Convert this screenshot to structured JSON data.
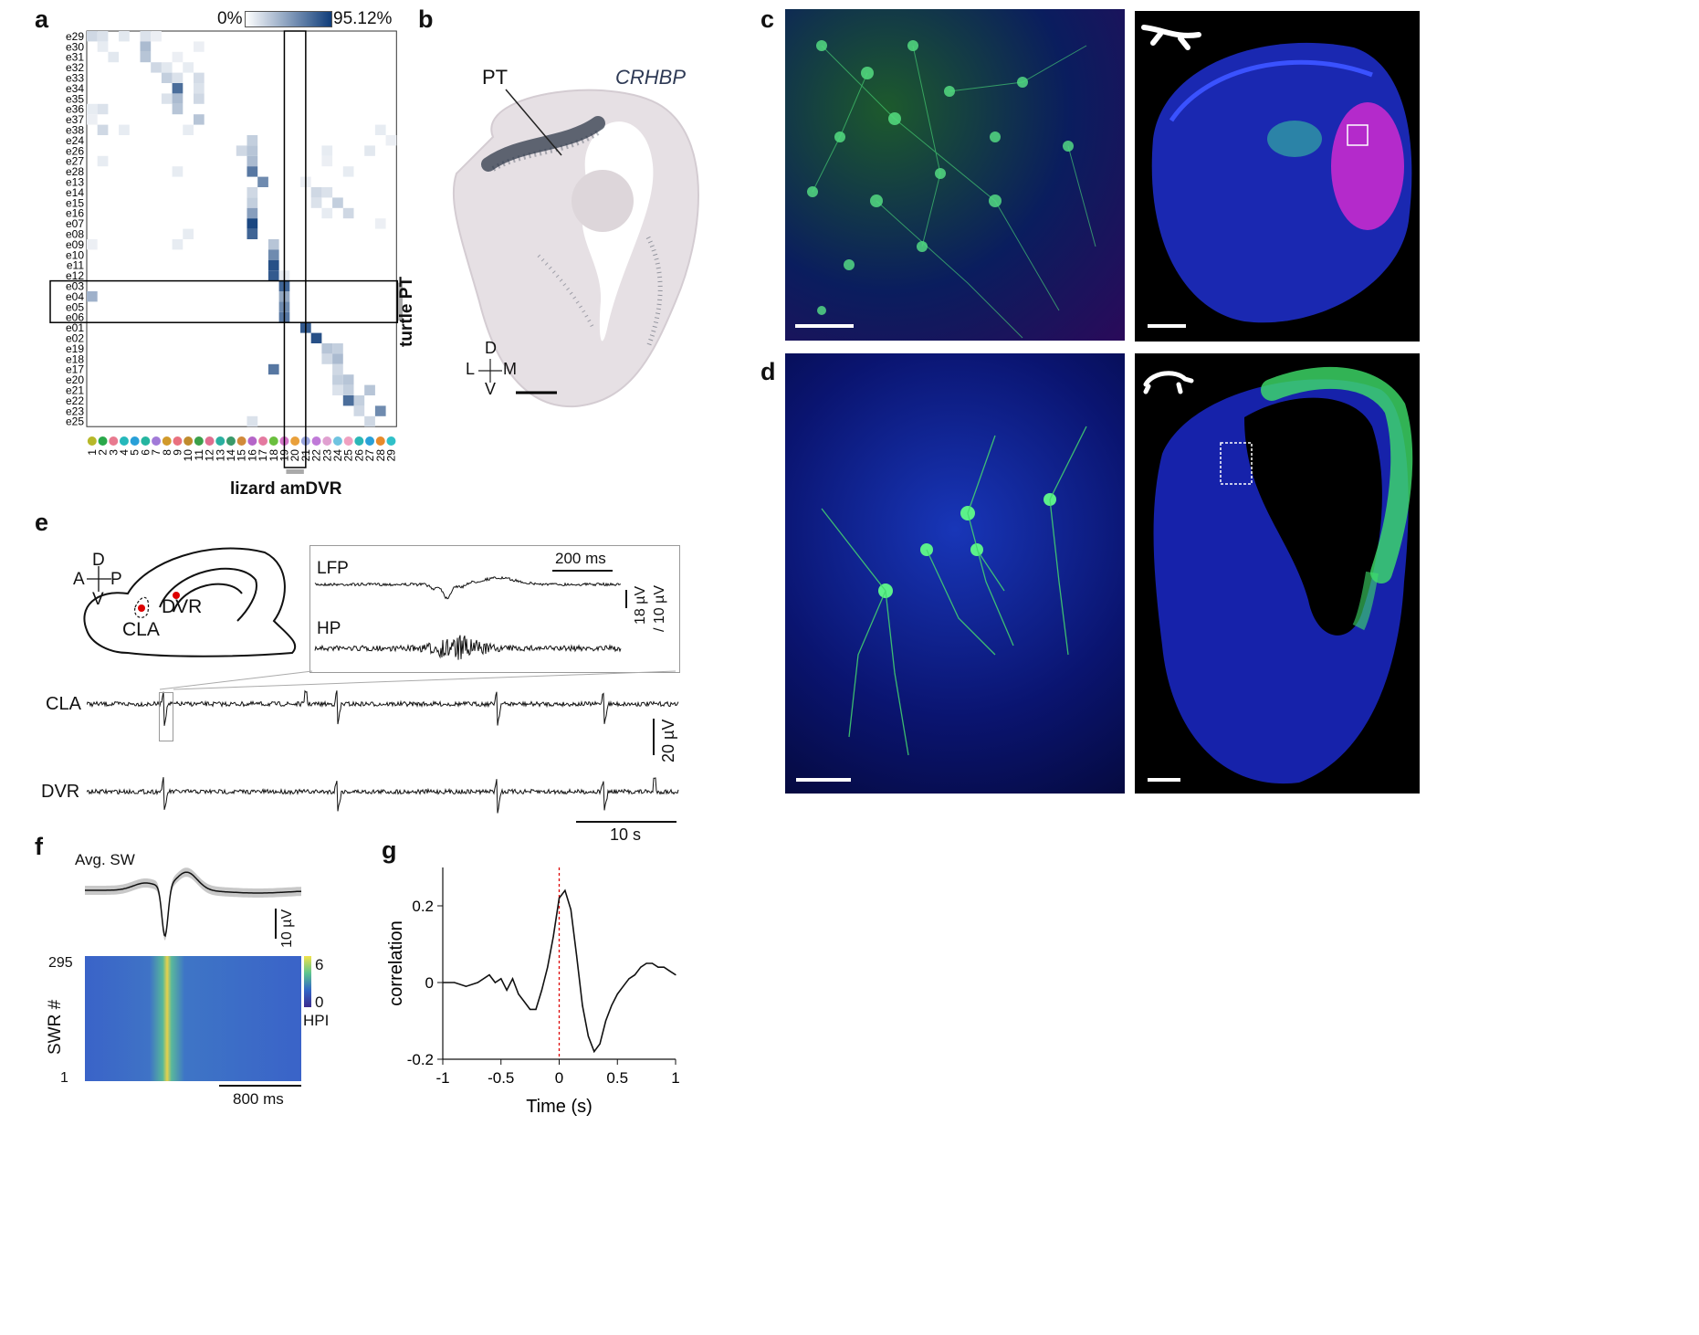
{
  "panels": {
    "a": {
      "label": "a",
      "colorbar_min": "0%",
      "colorbar_max": "95.12%",
      "row_labels": [
        "e29",
        "e30",
        "e31",
        "e32",
        "e33",
        "e34",
        "e35",
        "e36",
        "e37",
        "e38",
        "e24",
        "e26",
        "e27",
        "e28",
        "e13",
        "e14",
        "e15",
        "e16",
        "e07",
        "e08",
        "e09",
        "e10",
        "e11",
        "e12",
        "e03",
        "e04",
        "e05",
        "e06",
        "e01",
        "e02",
        "e19",
        "e18",
        "e17",
        "e20",
        "e21",
        "e22",
        "e23",
        "e25"
      ],
      "col_labels": [
        "1",
        "2",
        "3",
        "4",
        "5",
        "6",
        "7",
        "8",
        "9",
        "10",
        "11",
        "12",
        "13",
        "14",
        "15",
        "16",
        "17",
        "18",
        "19",
        "20",
        "21",
        "22",
        "23",
        "24",
        "25",
        "26",
        "27",
        "28",
        "29"
      ],
      "col_dot_colors": [
        "#b7b829",
        "#2aa84a",
        "#e87a8f",
        "#26b8bb",
        "#29a0d8",
        "#25b5a0",
        "#a17ad8",
        "#d19a2b",
        "#e9707e",
        "#c08b2d",
        "#3aa04a",
        "#e06e90",
        "#2ab0a0",
        "#3a9a6a",
        "#d18a3a",
        "#b565c8",
        "#e47aa0",
        "#6abf3e",
        "#d476c9",
        "#e9a03b",
        "#9aa6e0",
        "#c07ad8",
        "#e0a0d0",
        "#6fc3e0",
        "#f0a0c0",
        "#2ab7b7",
        "#2aa0d8",
        "#e88a2a",
        "#30c0c8"
      ],
      "row_group_label": "turtle PT",
      "col_group_label": "lizard amDVR",
      "highlight_rows": [
        "e03",
        "e04",
        "e05",
        "e06"
      ],
      "highlight_col": "20",
      "matrix_cells": [
        [
          0,
          0,
          0.2
        ],
        [
          0,
          1,
          0.15
        ],
        [
          0,
          3,
          0.12
        ],
        [
          0,
          5,
          0.15
        ],
        [
          0,
          6,
          0.08
        ],
        [
          1,
          1,
          0.1
        ],
        [
          1,
          5,
          0.35
        ],
        [
          1,
          10,
          0.08
        ],
        [
          2,
          2,
          0.12
        ],
        [
          2,
          5,
          0.3
        ],
        [
          2,
          8,
          0.08
        ],
        [
          3,
          6,
          0.2
        ],
        [
          3,
          7,
          0.12
        ],
        [
          3,
          9,
          0.1
        ],
        [
          4,
          7,
          0.25
        ],
        [
          4,
          8,
          0.15
        ],
        [
          4,
          10,
          0.18
        ],
        [
          5,
          8,
          0.75
        ],
        [
          5,
          10,
          0.15
        ],
        [
          6,
          7,
          0.15
        ],
        [
          6,
          8,
          0.35
        ],
        [
          6,
          10,
          0.2
        ],
        [
          7,
          0,
          0.1
        ],
        [
          7,
          1,
          0.15
        ],
        [
          7,
          8,
          0.3
        ],
        [
          8,
          0,
          0.08
        ],
        [
          8,
          10,
          0.3
        ],
        [
          9,
          1,
          0.2
        ],
        [
          9,
          3,
          0.1
        ],
        [
          9,
          9,
          0.1
        ],
        [
          9,
          27,
          0.1
        ],
        [
          10,
          15,
          0.25
        ],
        [
          10,
          28,
          0.08
        ],
        [
          11,
          14,
          0.2
        ],
        [
          11,
          15,
          0.3
        ],
        [
          11,
          22,
          0.1
        ],
        [
          11,
          26,
          0.12
        ],
        [
          12,
          1,
          0.1
        ],
        [
          12,
          15,
          0.35
        ],
        [
          12,
          22,
          0.08
        ],
        [
          13,
          8,
          0.1
        ],
        [
          13,
          15,
          0.7
        ],
        [
          13,
          24,
          0.1
        ],
        [
          14,
          16,
          0.6
        ],
        [
          14,
          20,
          0.08
        ],
        [
          15,
          15,
          0.2
        ],
        [
          15,
          21,
          0.2
        ],
        [
          15,
          22,
          0.15
        ],
        [
          16,
          15,
          0.25
        ],
        [
          16,
          21,
          0.15
        ],
        [
          16,
          23,
          0.25
        ],
        [
          17,
          15,
          0.5
        ],
        [
          17,
          22,
          0.1
        ],
        [
          17,
          24,
          0.2
        ],
        [
          18,
          15,
          0.95
        ],
        [
          18,
          27,
          0.08
        ],
        [
          19,
          9,
          0.1
        ],
        [
          19,
          15,
          0.8
        ],
        [
          20,
          0,
          0.08
        ],
        [
          20,
          8,
          0.1
        ],
        [
          20,
          17,
          0.3
        ],
        [
          21,
          17,
          0.6
        ],
        [
          22,
          17,
          0.9
        ],
        [
          23,
          17,
          0.85
        ],
        [
          23,
          18,
          0.1
        ],
        [
          24,
          18,
          0.8
        ],
        [
          25,
          0,
          0.4
        ],
        [
          25,
          18,
          0.45
        ],
        [
          26,
          18,
          0.6
        ],
        [
          27,
          18,
          0.7
        ],
        [
          28,
          20,
          0.85
        ],
        [
          29,
          21,
          0.9
        ],
        [
          30,
          22,
          0.3
        ],
        [
          30,
          23,
          0.25
        ],
        [
          31,
          22,
          0.2
        ],
        [
          31,
          23,
          0.35
        ],
        [
          32,
          17,
          0.7
        ],
        [
          32,
          23,
          0.2
        ],
        [
          33,
          23,
          0.25
        ],
        [
          33,
          24,
          0.3
        ],
        [
          34,
          23,
          0.15
        ],
        [
          34,
          24,
          0.25
        ],
        [
          34,
          26,
          0.3
        ],
        [
          35,
          24,
          0.75
        ],
        [
          35,
          25,
          0.25
        ],
        [
          36,
          25,
          0.2
        ],
        [
          36,
          27,
          0.6
        ],
        [
          37,
          15,
          0.15
        ],
        [
          37,
          26,
          0.2
        ]
      ]
    },
    "b": {
      "label": "b",
      "region_label": "PT",
      "gene_label": "CRHBP",
      "orientation": {
        "d": "D",
        "v": "V",
        "l": "L",
        "m": "M"
      }
    },
    "c": {
      "label": "c"
    },
    "d": {
      "label": "d"
    },
    "e": {
      "label": "e",
      "orientation": {
        "d": "D",
        "v": "V",
        "a": "A",
        "p": "P"
      },
      "regions": {
        "cla": "CLA",
        "dvr": "DVR"
      },
      "inset_labels": {
        "lfp": "LFP",
        "hp": "HP",
        "time_scale": "200 ms",
        "volt_scale_1": "18 µV",
        "volt_scale_2": "/ 10 µV"
      },
      "trace_labels": {
        "cla": "CLA",
        "dvr": "DVR"
      },
      "volt_scale": "20 µV",
      "time_scale": "10 s"
    },
    "f": {
      "label": "f",
      "avg_title": "Avg. SW",
      "volt_scale": "10 µV",
      "raster_top": "295",
      "raster_bottom": "1",
      "raster_ylabel": "SWR #",
      "cbar_max": "6",
      "cbar_min": "0",
      "cbar_label": "HPI",
      "time_scale": "800 ms"
    },
    "g": {
      "label": "g",
      "ylabel": "correlation",
      "xlabel": "Time (s)",
      "xticks": [
        "-1",
        "-0.5",
        "0",
        "0.5",
        "1"
      ],
      "yticks": [
        "0.2",
        "0",
        "-0.2"
      ]
    }
  },
  "chart_data": {
    "type": "line",
    "xlabel": "Time (s)",
    "ylabel": "correlation",
    "xlim": [
      -1,
      1
    ],
    "ylim": [
      -0.2,
      0.3
    ],
    "x": [
      -1,
      -0.9,
      -0.8,
      -0.7,
      -0.6,
      -0.55,
      -0.5,
      -0.45,
      -0.4,
      -0.35,
      -0.3,
      -0.25,
      -0.2,
      -0.15,
      -0.1,
      -0.05,
      0,
      0.05,
      0.1,
      0.15,
      0.2,
      0.25,
      0.3,
      0.35,
      0.4,
      0.45,
      0.5,
      0.55,
      0.6,
      0.65,
      0.7,
      0.75,
      0.8,
      0.85,
      0.9,
      0.95,
      1
    ],
    "series": [
      {
        "values": [
          0,
          0,
          -0.01,
          0,
          0.02,
          0,
          0.01,
          -0.02,
          0.01,
          -0.03,
          -0.05,
          -0.07,
          -0.07,
          -0.02,
          0.04,
          0.12,
          0.22,
          0.24,
          0.19,
          0.07,
          -0.06,
          -0.14,
          -0.18,
          -0.16,
          -0.1,
          -0.06,
          -0.03,
          -0.01,
          0.01,
          0.02,
          0.04,
          0.05,
          0.05,
          0.04,
          0.04,
          0.03,
          0.02
        ]
      }
    ],
    "vline_x": 0
  }
}
